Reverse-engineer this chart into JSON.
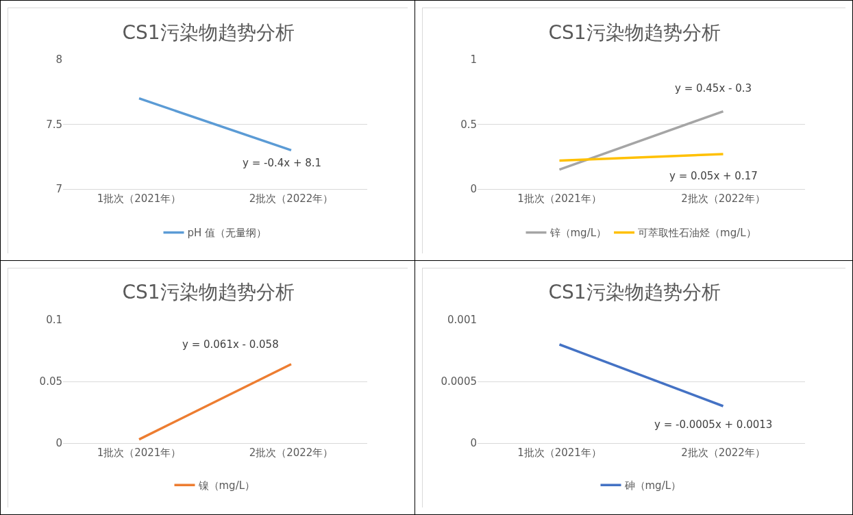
{
  "chart_data": [
    {
      "type": "line",
      "title": "CS1污染物趋势分析",
      "categories": [
        "1批次（2021年）",
        "2批次（2022年）"
      ],
      "series": [
        {
          "name": "pH 值（无量纲）",
          "color": "#5b9bd5",
          "values": [
            7.7,
            7.3
          ]
        }
      ],
      "ylim": [
        7,
        8
      ],
      "yticks": [
        7,
        7.5,
        8
      ],
      "grid": "y",
      "legend": "bottom",
      "marker": "none",
      "line_style": "solid",
      "annotations": [
        "y = -0.4x + 8.1"
      ]
    },
    {
      "type": "line",
      "title": "CS1污染物趋势分析",
      "categories": [
        "1批次（2021年）",
        "2批次（2022年）"
      ],
      "series": [
        {
          "name": "锌（mg/L）",
          "color": "#a5a5a5",
          "values": [
            0.15,
            0.6
          ]
        },
        {
          "name": "可萃取性石油烃（mg/L）",
          "color": "#ffc000",
          "values": [
            0.22,
            0.27
          ]
        }
      ],
      "ylim": [
        0,
        1
      ],
      "yticks": [
        0,
        0.5,
        1
      ],
      "grid": "y",
      "legend": "bottom",
      "marker": "none",
      "line_style": "solid",
      "annotations": [
        "y = 0.45x - 0.3",
        "y = 0.05x + 0.17"
      ]
    },
    {
      "type": "line",
      "title": "CS1污染物趋势分析",
      "categories": [
        "1批次（2021年）",
        "2批次（2022年）"
      ],
      "series": [
        {
          "name": "镍（mg/L）",
          "color": "#ed7d31",
          "values": [
            0.003,
            0.064
          ]
        }
      ],
      "ylim": [
        0,
        0.1
      ],
      "yticks": [
        0,
        0.05,
        0.1
      ],
      "grid": "y",
      "legend": "bottom",
      "marker": "none",
      "line_style": "solid",
      "annotations": [
        "y = 0.061x - 0.058"
      ]
    },
    {
      "type": "line",
      "title": "CS1污染物趋势分析",
      "categories": [
        "1批次（2021年）",
        "2批次（2022年）"
      ],
      "series": [
        {
          "name": "砷（mg/L）",
          "color": "#4472c4",
          "values": [
            0.0008,
            0.0003
          ]
        }
      ],
      "ylim": [
        0,
        0.001
      ],
      "yticks": [
        0,
        0.0005,
        0.001
      ],
      "grid": "y",
      "legend": "bottom",
      "marker": "none",
      "line_style": "solid",
      "annotations": [
        "y = -0.0005x + 0.0013"
      ]
    }
  ]
}
